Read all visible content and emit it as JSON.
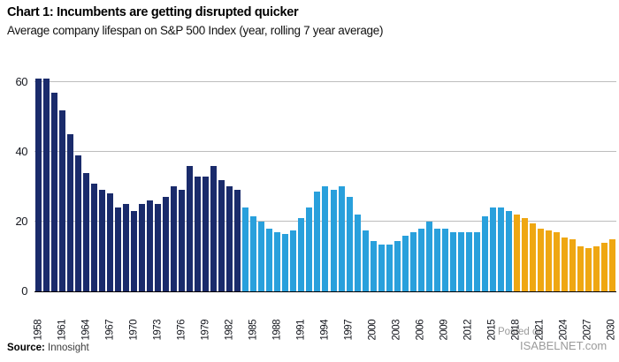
{
  "header": {
    "title": "Chart 1: Incumbents are getting disrupted quicker",
    "subtitle": "Average company lifespan on S&P 500 Index (year, rolling 7 year average)"
  },
  "source": {
    "label": "Source:",
    "value": "Innosight"
  },
  "watermark": {
    "line1": "Posted on",
    "line2": "ISABELNET.com"
  },
  "chart_data": {
    "type": "bar",
    "title": "Chart 1: Incumbents are getting disrupted quicker",
    "subtitle": "Average company lifespan on S&P 500 Index (year, rolling 7 year average)",
    "xlabel": "",
    "ylabel": "",
    "ylim": [
      0,
      62
    ],
    "yticks": [
      0,
      20,
      40,
      60
    ],
    "grid": "horizontal",
    "legend": "none",
    "x_tick_years": [
      1958,
      1961,
      1964,
      1967,
      1970,
      1973,
      1976,
      1979,
      1982,
      1985,
      1988,
      1991,
      1994,
      1997,
      2000,
      2003,
      2006,
      2009,
      2012,
      2015,
      2018,
      2021,
      2024,
      2027,
      2030
    ],
    "segments": [
      {
        "name": "dark-navy-historical",
        "color": "#1a2b6b",
        "start_year": 1958,
        "end_year": 1983
      },
      {
        "name": "light-blue-recent",
        "color": "#29a0dc",
        "start_year": 1984,
        "end_year": 2017
      },
      {
        "name": "yellow-forecast",
        "color": "#efa712",
        "start_year": 2018,
        "end_year": 2030
      }
    ],
    "years": [
      1958,
      1959,
      1960,
      1961,
      1962,
      1963,
      1964,
      1965,
      1966,
      1967,
      1968,
      1969,
      1970,
      1971,
      1972,
      1973,
      1974,
      1975,
      1976,
      1977,
      1978,
      1979,
      1980,
      1981,
      1982,
      1983,
      1984,
      1985,
      1986,
      1987,
      1988,
      1989,
      1990,
      1991,
      1992,
      1993,
      1994,
      1995,
      1996,
      1997,
      1998,
      1999,
      2000,
      2001,
      2002,
      2003,
      2004,
      2005,
      2006,
      2007,
      2008,
      2009,
      2010,
      2011,
      2012,
      2013,
      2014,
      2015,
      2016,
      2017,
      2018,
      2019,
      2020,
      2021,
      2022,
      2023,
      2024,
      2025,
      2026,
      2027,
      2028,
      2029,
      2030
    ],
    "values": [
      61,
      61,
      57,
      52,
      45,
      39,
      34,
      31,
      29,
      28,
      24,
      25,
      23,
      25,
      26,
      25,
      27,
      30,
      29,
      36,
      33,
      33,
      36,
      32,
      30,
      29,
      24,
      21.5,
      20,
      18,
      17,
      16.5,
      17.5,
      21,
      24,
      28.5,
      30,
      29,
      30,
      27,
      22,
      17.5,
      14.5,
      13.5,
      13.5,
      14.5,
      16,
      17,
      18,
      20,
      18,
      18,
      17,
      17,
      17,
      17,
      21.5,
      24,
      24,
      23,
      22,
      21,
      19.5,
      18,
      17.5,
      17,
      15.5,
      15,
      13,
      12.5,
      13,
      14,
      15
    ]
  }
}
